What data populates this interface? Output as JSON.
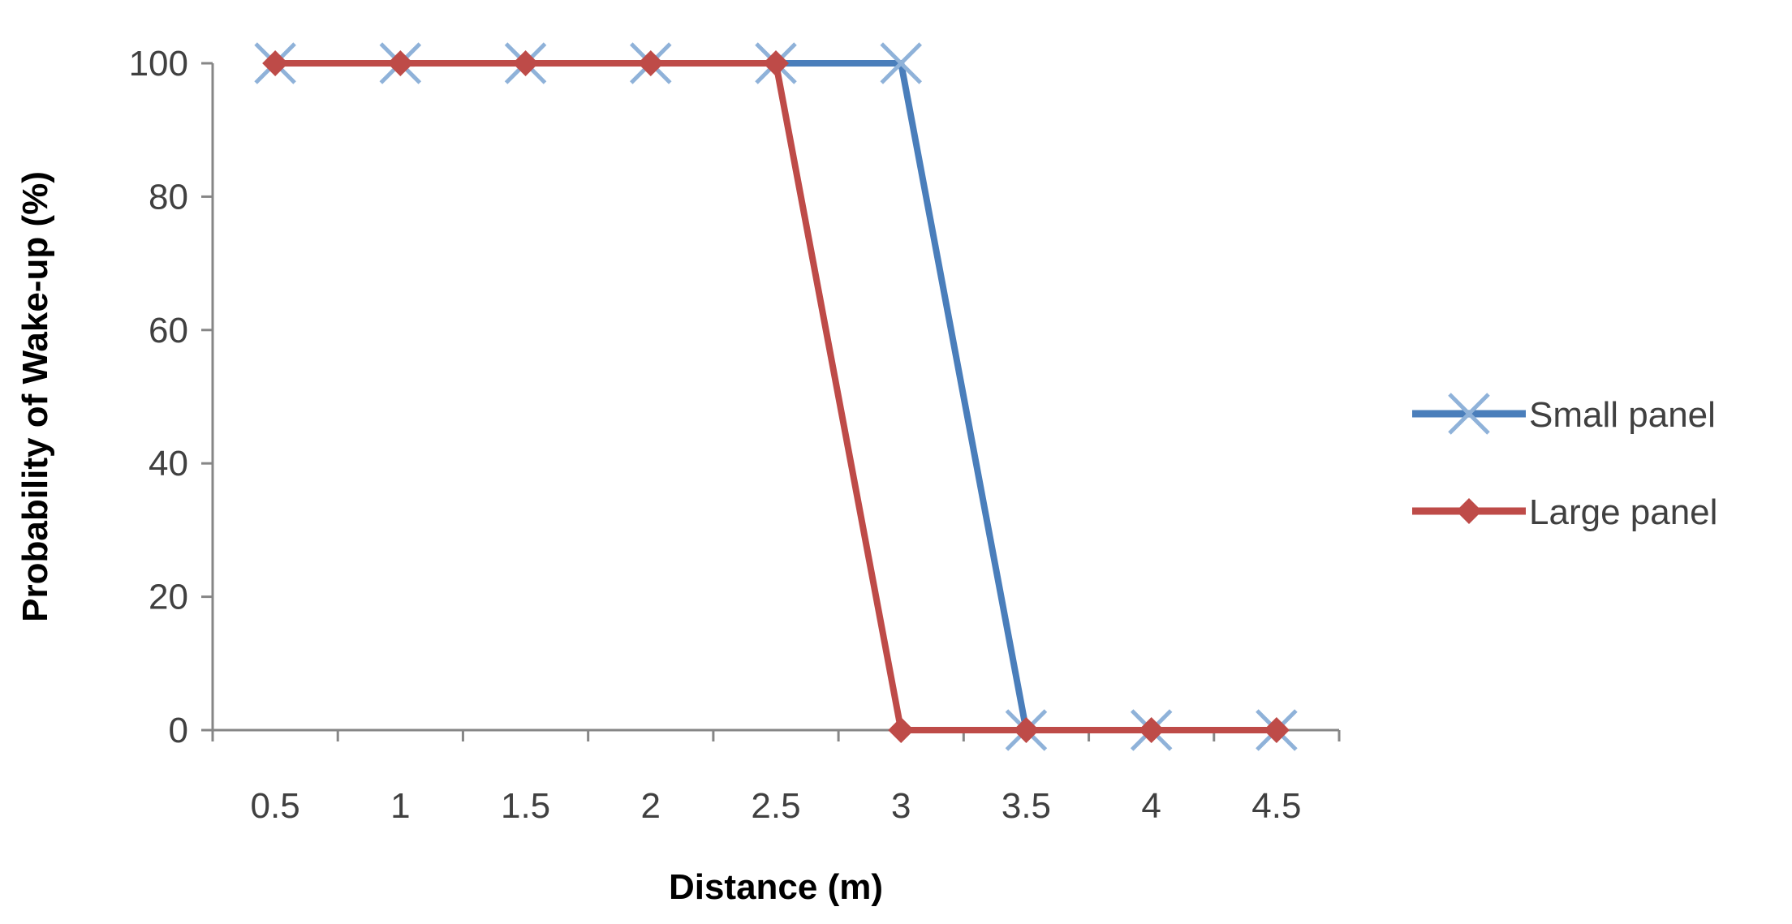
{
  "chart_data": {
    "type": "line",
    "title": "",
    "xlabel": "Distance (m)",
    "ylabel": "Probability of Wake-up (%)",
    "categories": [
      "0.5",
      "1",
      "1.5",
      "2",
      "2.5",
      "3",
      "3.5",
      "4",
      "4.5"
    ],
    "yticks": [
      "0",
      "20",
      "40",
      "60",
      "80",
      "100"
    ],
    "ylim": [
      0,
      100
    ],
    "grid": false,
    "legend_position": "right",
    "series": [
      {
        "name": "Small panel",
        "marker": "x",
        "color": "#4a7ebb",
        "values": [
          100,
          100,
          100,
          100,
          100,
          100,
          0,
          0,
          0
        ]
      },
      {
        "name": "Large panel",
        "marker": "diamond",
        "color": "#be4b48",
        "values": [
          100,
          100,
          100,
          100,
          100,
          0,
          0,
          0,
          0
        ]
      }
    ]
  }
}
